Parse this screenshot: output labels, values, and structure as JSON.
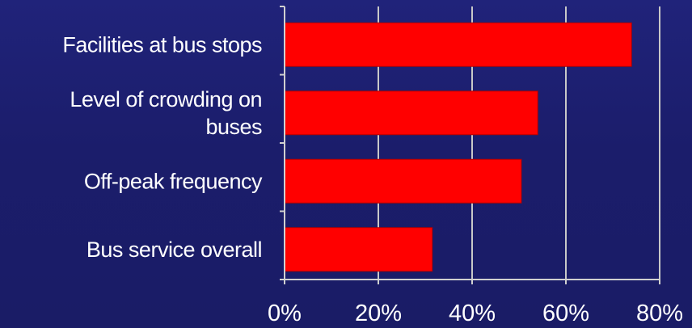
{
  "chart_data": {
    "type": "bar",
    "orientation": "horizontal",
    "categories": [
      [
        "Facilities at bus stops"
      ],
      [
        "Level of crowding on",
        "buses"
      ],
      [
        "Off-peak frequency"
      ],
      [
        "Bus service overall"
      ]
    ],
    "values": [
      74,
      54,
      50.5,
      31.5
    ],
    "xlim": [
      0,
      80
    ],
    "xticks": [
      0,
      20,
      40,
      60,
      80
    ],
    "xtick_labels": [
      "0%",
      "20%",
      "40%",
      "60%",
      "80%"
    ],
    "title": "",
    "xlabel": "",
    "ylabel": "",
    "grid": true,
    "legend": "none",
    "colors": {
      "bar": "#ff0000",
      "bar_edge": "#b30000",
      "grid": "#c8c8c8",
      "axis": "#d0d0d0",
      "text": "#ffffff",
      "background": "#1c1e6e"
    }
  }
}
